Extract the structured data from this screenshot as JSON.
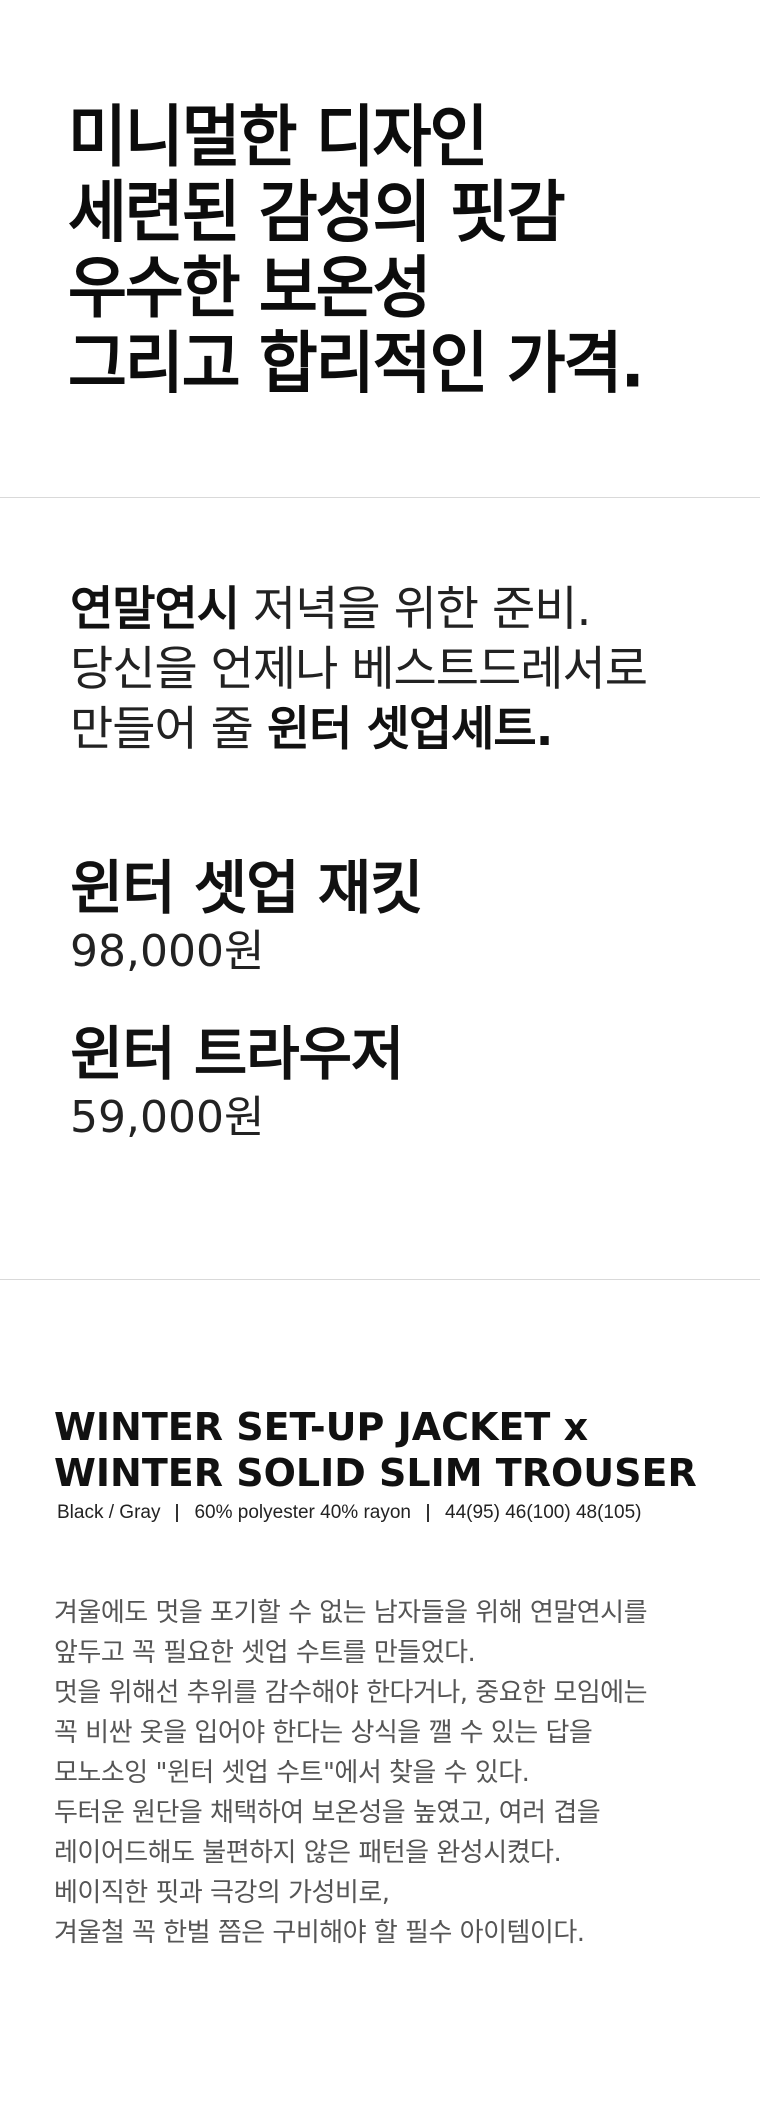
{
  "hero": {
    "lines": [
      "미니멀한 디자인",
      "세련된 감성의 핏감",
      "우수한 보온성",
      "그리고 합리적인 가격."
    ]
  },
  "intro": {
    "line1_bold": "연말연시",
    "line1_rest": " 저녁을 위한 준비.",
    "line2": "당신을 언제나 베스트드레서로",
    "line3_prefix": "만들어 줄 ",
    "line3_bold": "윈터 셋업세트."
  },
  "products": [
    {
      "name": "윈터 셋업 재킷",
      "price": "98,000원"
    },
    {
      "name": "윈터 트라우저",
      "price": "59,000원"
    }
  ],
  "english_title": {
    "line1": "WINTER SET-UP JACKET  x",
    "line2": "WINTER SOLID SLIM TROUSER"
  },
  "specs": {
    "color": "Black / Gray",
    "material": "60% polyester  40% rayon",
    "sizes": "44(95)  46(100)  48(105)"
  },
  "description": [
    "겨울에도 멋을 포기할 수 없는 남자들을 위해 연말연시를",
    "앞두고 꼭 필요한 셋업 수트를 만들었다.",
    "멋을 위해선 추위를 감수해야 한다거나, 중요한 모임에는",
    "꼭 비싼 옷을 입어야 한다는 상식을 깰 수 있는 답을",
    "모노소잉 \"윈터 셋업 수트\"에서 찾을 수 있다.",
    "두터운 원단을 채택하여 보온성을 높였고, 여러 겹을",
    "레이어드해도 불편하지 않은 패턴을 완성시켰다.",
    "베이직한 핏과 극강의 가성비로,",
    "겨울철 꼭 한벌 쯤은 구비해야 할 필수 아이템이다."
  ]
}
